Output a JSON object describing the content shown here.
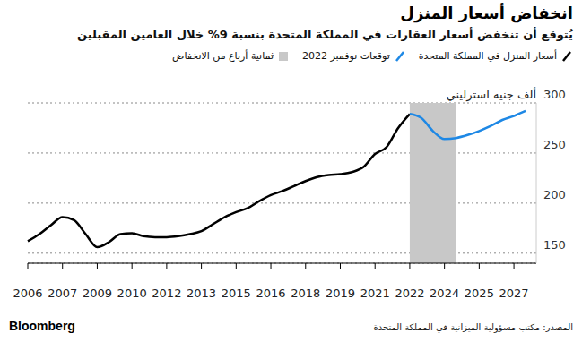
{
  "chart_data": {
    "type": "line",
    "title": "انخفاض أسعار المنزل",
    "subtitle": "يُتوقع أن تنخفض أسعار العقارات في المملكة المتحدة بنسبة 9% خلال العامين المقبلين",
    "y_unit": "ألف جنيه استرليني",
    "source": "المصدر: مكتب مسؤولية الميزانية في المملكة المتحدة",
    "brand": "Bloomberg",
    "categories": [
      "2006",
      null,
      null,
      "2007",
      null,
      null,
      "2009",
      null,
      null,
      "2010",
      null,
      null,
      "2012",
      null,
      null,
      "2013",
      null,
      null,
      "2015",
      null,
      null,
      "2016",
      null,
      null,
      "2018",
      null,
      null,
      "2019",
      null,
      null,
      "2021",
      null,
      null,
      "2022",
      null,
      null,
      "2024",
      null,
      null,
      "2025",
      null,
      null,
      "2027",
      null
    ],
    "series": [
      {
        "name": "أسعار المنزل في المملكة المتحدة",
        "color": "#000000",
        "line_style": "solid",
        "values": [
          162,
          169,
          178,
          186,
          183,
          169,
          156,
          161,
          169,
          170,
          167,
          166,
          166,
          167,
          169,
          172,
          179,
          186,
          191,
          195,
          202,
          208,
          212,
          217,
          222,
          226,
          228,
          229,
          231,
          236,
          249,
          256,
          275,
          289,
          null,
          null,
          null,
          null,
          null,
          null,
          null,
          null,
          null,
          null
        ]
      },
      {
        "name": "توقعات نوفمبر 2022",
        "color": "#1e88e5",
        "line_style": "solid",
        "values": [
          null,
          null,
          null,
          null,
          null,
          null,
          null,
          null,
          null,
          null,
          null,
          null,
          null,
          null,
          null,
          null,
          null,
          null,
          null,
          null,
          null,
          null,
          null,
          null,
          null,
          null,
          null,
          null,
          null,
          null,
          null,
          null,
          null,
          289,
          285,
          272,
          264,
          265,
          268,
          272,
          277,
          283,
          287,
          292
        ]
      }
    ],
    "bands": [
      {
        "name": "ثمانية أرباع من الانخفاض",
        "color": "#c8c8c8",
        "start": 33,
        "end": 37
      }
    ],
    "ylim": [
      140,
      300
    ],
    "yticks": [
      150,
      200,
      250,
      300
    ],
    "grid": true,
    "legend": "top"
  }
}
